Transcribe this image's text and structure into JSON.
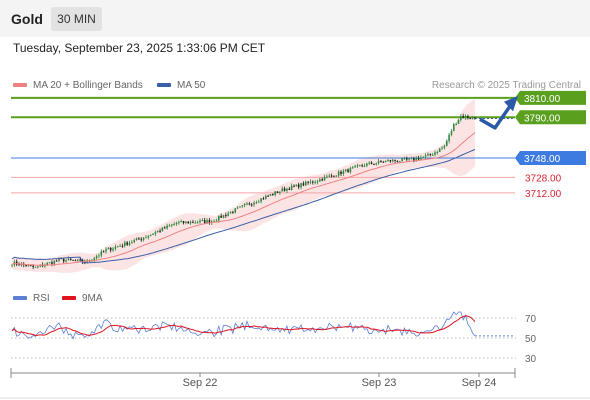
{
  "header": {
    "instrument": "Gold",
    "timeframe": "30 MIN"
  },
  "datetime": "Tuesday, September 23, 2025 1:33:06 PM CET",
  "legend": {
    "items": [
      {
        "label": "MA 20 + Bollinger Bands",
        "color": "#f08080"
      },
      {
        "label": "MA 50",
        "color": "#3a5fa8"
      }
    ],
    "credit": "Research © 2025 Trading Central"
  },
  "levels": [
    {
      "value": 3810.0,
      "label": "3810.00",
      "kind": "resistance",
      "color": "#5aa01e"
    },
    {
      "value": 3790.0,
      "label": "3790.00",
      "kind": "resistance",
      "color": "#5aa01e"
    },
    {
      "value": 3748.0,
      "label": "3748.00",
      "kind": "pivot",
      "color": "#3d7be0"
    },
    {
      "value": 3728.0,
      "label": "3728.00",
      "kind": "support",
      "color": "#d9232e"
    },
    {
      "value": 3712.0,
      "label": "3712.00",
      "kind": "support",
      "color": "#d9232e"
    }
  ],
  "rsi_panel": {
    "legend": [
      {
        "label": "RSI",
        "color": "#5b7fd6"
      },
      {
        "label": "9MA",
        "color": "#e0141e"
      }
    ],
    "ticks": [
      "70",
      "50",
      "30"
    ]
  },
  "x_axis": {
    "ticks": [
      "Sep 22",
      "Sep 23",
      "Sep 24"
    ]
  },
  "colors": {
    "up": "#2e8b3e",
    "down": "#222222",
    "band": "#fde4e4",
    "arrow": "#2b5aa8"
  },
  "chart_data": {
    "type": "candlestick",
    "y_range": [
      3615,
      3815
    ],
    "x_ticks": [
      "Sep 22",
      "Sep 23",
      "Sep 24"
    ],
    "series": [
      {
        "name": "MA 20 + Bollinger Bands"
      },
      {
        "name": "MA 50"
      }
    ],
    "levels": [
      3810.0,
      3790.0,
      3748.0,
      3728.0,
      3712.0
    ],
    "rsi": {
      "ticks": [
        70,
        50,
        30
      ]
    }
  }
}
